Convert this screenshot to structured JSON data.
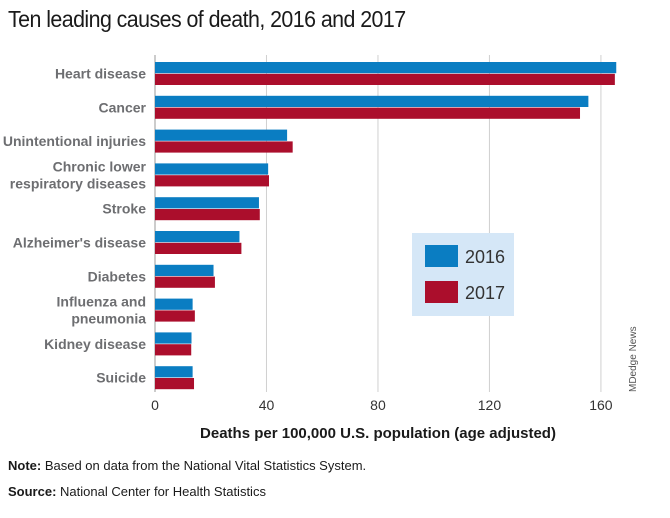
{
  "chart_data": {
    "type": "bar",
    "orientation": "horizontal",
    "title": "Ten leading causes of death, 2016 and 2017",
    "categories": [
      [
        "Heart disease"
      ],
      [
        "Cancer"
      ],
      [
        "Unintentional injuries"
      ],
      [
        "Chronic lower",
        "respiratory diseases"
      ],
      [
        "Stroke"
      ],
      [
        "Alzheimer's disease"
      ],
      [
        "Diabetes"
      ],
      [
        "Influenza and",
        "pneumonia"
      ],
      [
        "Kidney disease"
      ],
      [
        "Suicide"
      ]
    ],
    "series": [
      {
        "name": "2016",
        "color": "#0a7dc2",
        "values": [
          165.5,
          155.5,
          47.4,
          40.6,
          37.3,
          30.3,
          21.0,
          13.5,
          13.1,
          13.5
        ]
      },
      {
        "name": "2017",
        "color": "#ab0e2c",
        "values": [
          165.0,
          152.5,
          49.4,
          40.9,
          37.6,
          31.0,
          21.5,
          14.3,
          13.0,
          14.0
        ]
      }
    ],
    "xlabel": "Deaths per 100,000 U.S. population (age adjusted)",
    "xlim": [
      0,
      170
    ],
    "xticks": [
      0,
      40,
      80,
      120,
      160
    ],
    "grid": true,
    "legend_position": "center-right"
  },
  "footnotes": {
    "note_label": "Note:",
    "note_text": " Based on data from the National Vital Statistics System.",
    "source_label": "Source:",
    "source_text": " National Center for Health Statistics"
  },
  "credit": "MDedge News",
  "colors": {
    "grid": "#d0d0d0",
    "legend_bg": "#d5e7f7",
    "label": "#6d6e71"
  }
}
